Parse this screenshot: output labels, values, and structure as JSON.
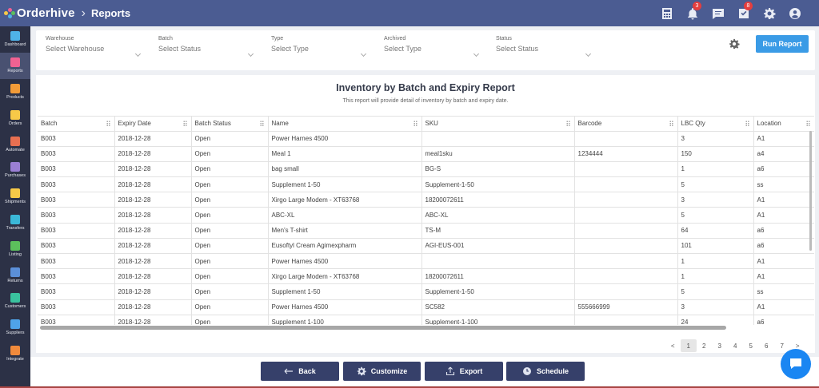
{
  "app": {
    "name": "Orderhive",
    "crumb": "Reports"
  },
  "top_icons": [
    {
      "name": "calculator-icon",
      "badge": ""
    },
    {
      "name": "bell-icon",
      "badge": "3"
    },
    {
      "name": "chat-icon",
      "badge": ""
    },
    {
      "name": "tasks-icon",
      "badge": "8"
    },
    {
      "name": "gear-icon",
      "badge": ""
    },
    {
      "name": "user-icon",
      "badge": ""
    }
  ],
  "sidebar": {
    "items": [
      {
        "label": "Dashboard",
        "icon": "dashboard-icon",
        "color": "#4fb3e8"
      },
      {
        "label": "Reports",
        "icon": "reports-icon",
        "color": "#f06292",
        "active": true
      },
      {
        "label": "Products",
        "icon": "products-icon",
        "color": "#f29b38"
      },
      {
        "label": "Orders",
        "icon": "orders-icon",
        "color": "#f7c948"
      },
      {
        "label": "Automate",
        "icon": "automate-icon",
        "color": "#e76f51"
      },
      {
        "label": "Purchases",
        "icon": "purchases-icon",
        "color": "#9b7fd4"
      },
      {
        "label": "Shipments",
        "icon": "shipments-icon",
        "color": "#f7c948"
      },
      {
        "label": "Transfers",
        "icon": "transfers-icon",
        "color": "#3bb8d8"
      },
      {
        "label": "Listing",
        "icon": "listing-icon",
        "color": "#5cc05c"
      },
      {
        "label": "Returns",
        "icon": "returns-icon",
        "color": "#5b8fd9"
      },
      {
        "label": "Customers",
        "icon": "customers-icon",
        "color": "#3ac29f"
      },
      {
        "label": "Suppliers",
        "icon": "suppliers-icon",
        "color": "#4fa3e8"
      },
      {
        "label": "Integrate",
        "icon": "integrate-icon",
        "color": "#f08a3c"
      }
    ]
  },
  "filters": [
    {
      "label": "Warehouse",
      "value": "Select Warehouse"
    },
    {
      "label": "Batch",
      "value": "Select Status"
    },
    {
      "label": "Type",
      "value": "Select Type"
    },
    {
      "label": "Archived",
      "value": "Select Type"
    },
    {
      "label": "Status",
      "value": "Select Status"
    }
  ],
  "run_report": "Run Report",
  "report": {
    "title": "Inventory by Batch and Expiry Report",
    "subtitle": "This report will provide detail of inventory by batch and expiry date."
  },
  "table": {
    "columns": [
      "Batch",
      "Expiry Date",
      "Batch Status",
      "Name",
      "SKU",
      "Barcode",
      "LBC Qty",
      "Location"
    ],
    "rows": [
      [
        "B003",
        "2018-12-28",
        "Open",
        "Power Harnes 4500",
        "",
        "",
        "3",
        "A1"
      ],
      [
        "B003",
        "2018-12-28",
        "Open",
        "Meal 1",
        "meal1sku",
        "1234444",
        "150",
        "a4"
      ],
      [
        "B003",
        "2018-12-28",
        "Open",
        "bag small",
        "BG-S",
        "",
        "1",
        "a6"
      ],
      [
        "B003",
        "2018-12-28",
        "Open",
        "Supplement 1-50",
        "Supplement-1-50",
        "",
        "5",
        "ss"
      ],
      [
        "B003",
        "2018-12-28",
        "Open",
        "Xirgo Large Modem - XT63768",
        "18200072611",
        "",
        "3",
        "A1"
      ],
      [
        "B003",
        "2018-12-28",
        "Open",
        "ABC-XL",
        "ABC-XL",
        "",
        "5",
        "A1"
      ],
      [
        "B003",
        "2018-12-28",
        "Open",
        "Men's T-shirt",
        "TS-M",
        "",
        "64",
        "a6"
      ],
      [
        "B003",
        "2018-12-28",
        "Open",
        "Eusoftyl Cream Agimexpharm",
        "AGI-EUS-001",
        "",
        "101",
        "a6"
      ],
      [
        "B003",
        "2018-12-28",
        "Open",
        "Power Harnes 4500",
        "",
        "",
        "1",
        "A1"
      ],
      [
        "B003",
        "2018-12-28",
        "Open",
        "Xirgo Large Modem - XT63768",
        "18200072611",
        "",
        "1",
        "A1"
      ],
      [
        "B003",
        "2018-12-28",
        "Open",
        "Supplement 1-50",
        "Supplement-1-50",
        "",
        "5",
        "ss"
      ],
      [
        "B003",
        "2018-12-28",
        "Open",
        "Power Harnes 4500",
        "SC582",
        "555666999",
        "3",
        "A1"
      ],
      [
        "B003",
        "2018-12-28",
        "Open",
        "Supplement 1-100",
        "Supplement-1-100",
        "",
        "24",
        "a6"
      ]
    ]
  },
  "pagination": {
    "prev": "<",
    "pages": [
      "1",
      "2",
      "3",
      "4",
      "5",
      "6",
      "7"
    ],
    "next": ">",
    "current": "1"
  },
  "actions": {
    "back": "Back",
    "customize": "Customize",
    "export": "Export",
    "schedule": "Schedule"
  }
}
